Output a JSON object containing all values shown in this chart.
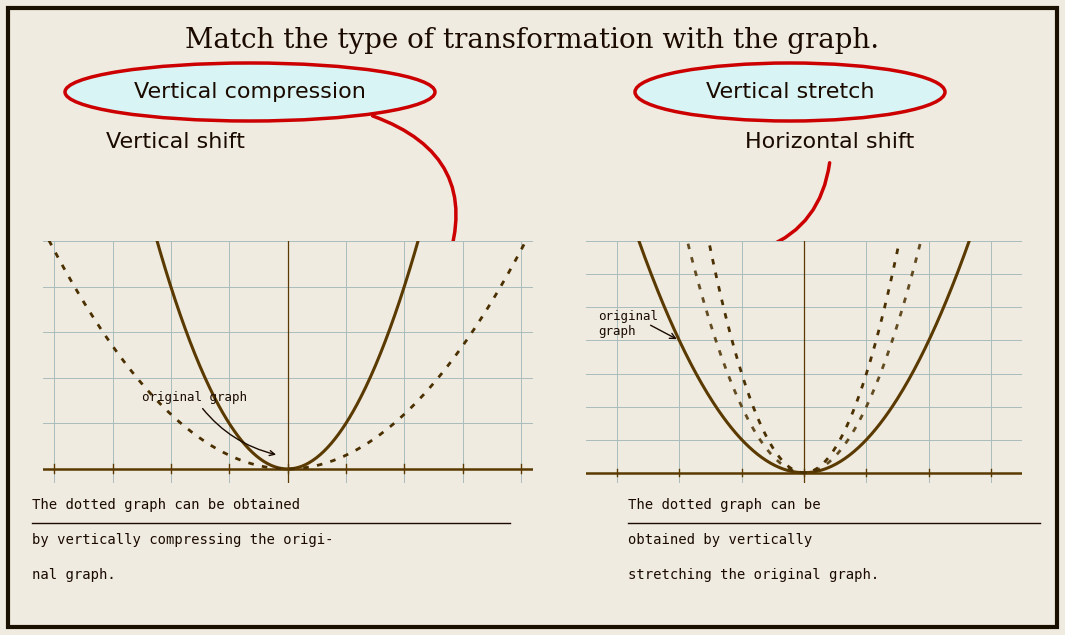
{
  "title": "Match the type of transformation with the graph.",
  "bg_color": "#f0ebe0",
  "border_color": "#1a1000",
  "title_fontsize": 20,
  "left_circled": "Vertical compression",
  "left_plain": "Vertical shift",
  "right_circled": "Vertical stretch",
  "right_plain": "Horizontal shift",
  "label_fontsize": 16,
  "left_caption_line1": "The dotted graph can be obtained",
  "left_caption_line2": "by vertically compressing the origi-",
  "left_caption_line3": "nal graph.",
  "right_caption_line1": "The dotted graph can be",
  "right_caption_line2": "obtained by vertically",
  "right_caption_line3": "stretching the original graph.",
  "curve_color": "#5a3a00",
  "dot_color": "#4a3000",
  "axis_color": "#5a3a00",
  "grid_color": "#aabcbc",
  "circle_color": "#cc0000",
  "circle_fill": "#d8f4f4",
  "arrow_color": "#cc0000"
}
